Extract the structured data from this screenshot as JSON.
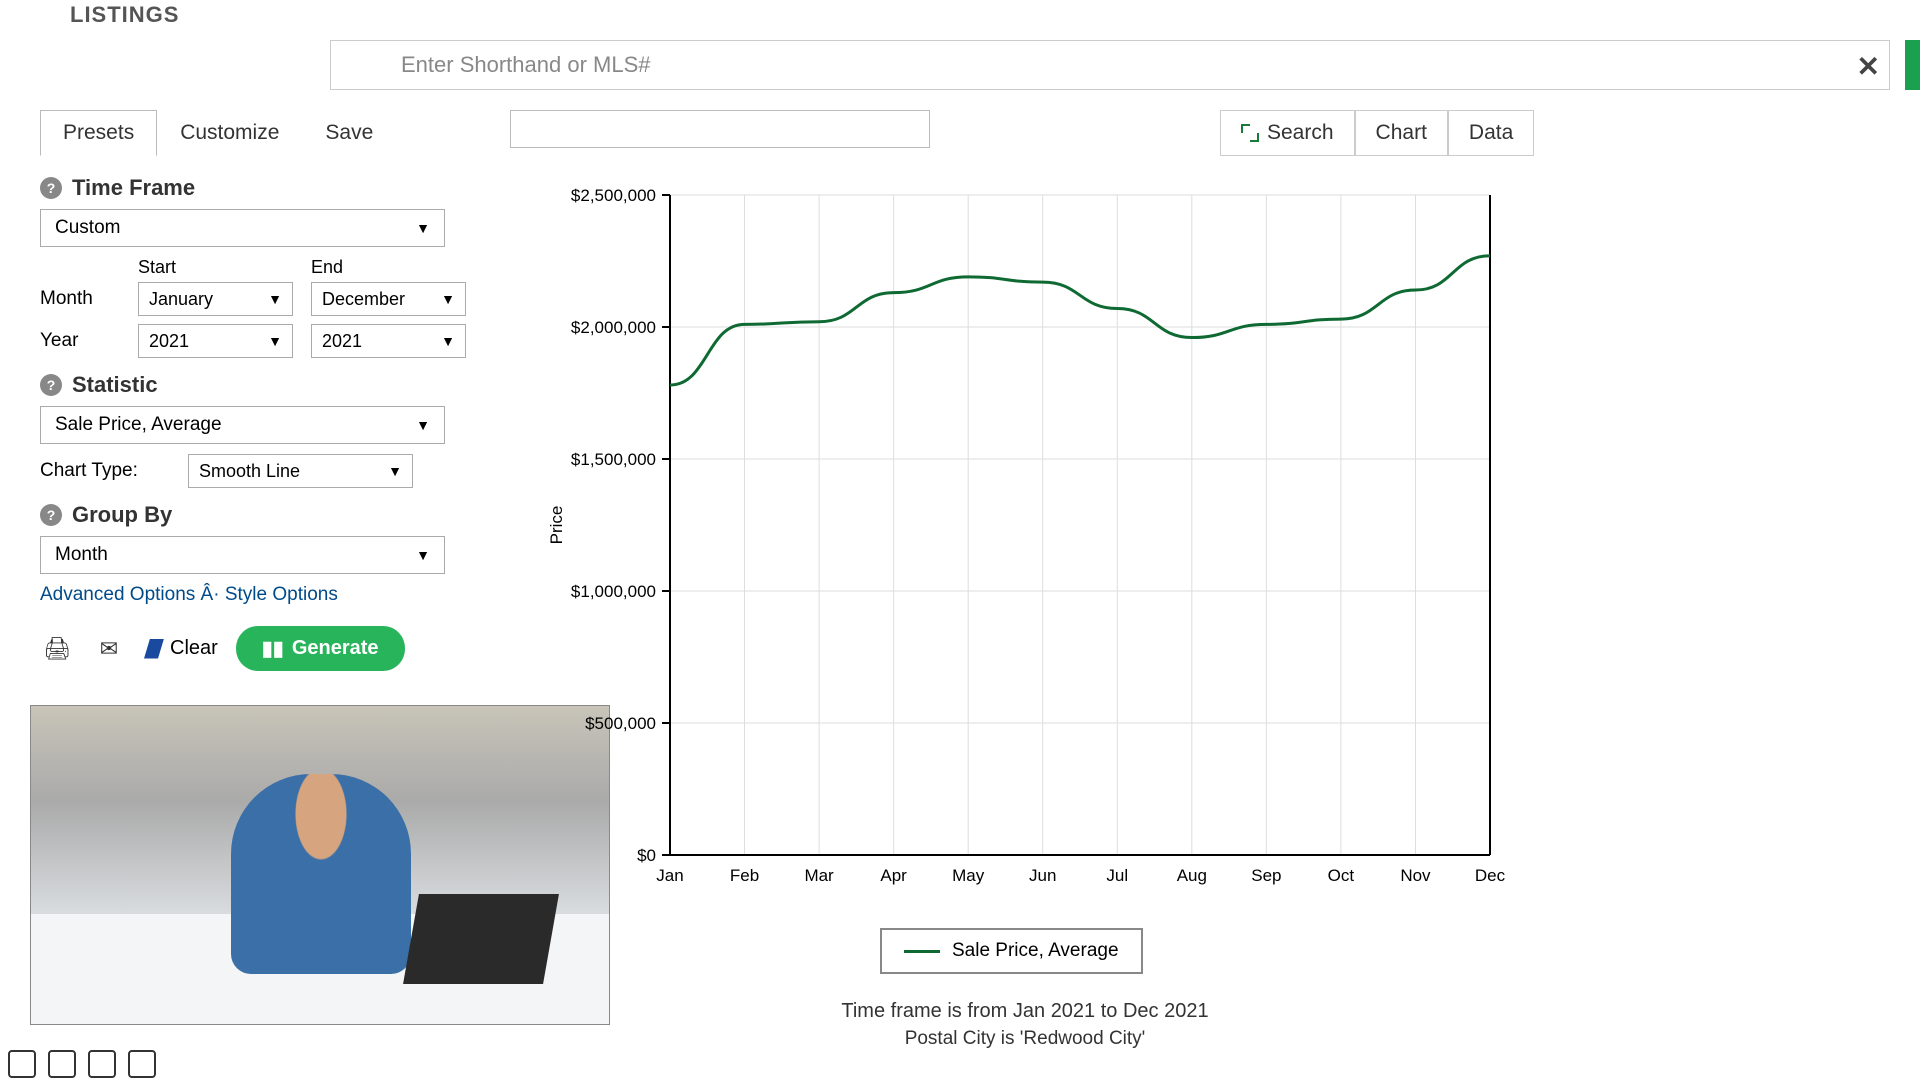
{
  "header": {
    "logo": "LISTINGS",
    "search_placeholder": "Enter Shorthand or MLS#"
  },
  "tabs": {
    "presets": "Presets",
    "customize": "Customize",
    "save": "Save"
  },
  "right_tabs": {
    "search": "Search",
    "chart": "Chart",
    "data": "Data"
  },
  "timeframe": {
    "title": "Time Frame",
    "range_type": "Custom",
    "start_label": "Start",
    "end_label": "End",
    "month_label": "Month",
    "year_label": "Year",
    "start_month": "January",
    "end_month": "December",
    "start_year": "2021",
    "end_year": "2021"
  },
  "statistic": {
    "title": "Statistic",
    "value": "Sale Price, Average",
    "chart_type_label": "Chart Type:",
    "chart_type_value": "Smooth Line"
  },
  "groupby": {
    "title": "Group By",
    "value": "Month"
  },
  "links": {
    "advanced": "Advanced Options",
    "sep": " Â· ",
    "style": "Style Options"
  },
  "actions": {
    "clear": "Clear",
    "generate": "Generate"
  },
  "chart": {
    "type": "line",
    "y_title": "Price",
    "y_ticks": [
      "$0",
      "$500,000",
      "$1,000,000",
      "$1,500,000",
      "$2,500,000",
      "$2,000,000"
    ],
    "y_tick_values": [
      0,
      500000,
      1000000,
      1500000,
      2500000,
      2000000
    ],
    "x_labels": [
      "Jan",
      "Feb",
      "Mar",
      "Apr",
      "May",
      "Jun",
      "Jul",
      "Aug",
      "Sep",
      "Oct",
      "Nov",
      "Dec"
    ],
    "series": {
      "name": "Sale Price, Average",
      "color": "#0e6a32",
      "values": [
        1780000,
        2010000,
        2020000,
        2130000,
        2190000,
        2170000,
        2070000,
        1960000,
        2010000,
        2030000,
        2140000,
        2270000
      ]
    },
    "ylim": [
      0,
      2500000
    ],
    "background": "#ffffff",
    "grid_color": "#dddddd",
    "axis_color": "#000000",
    "line_width": 3,
    "caption1": "Time frame is from Jan 2021 to Dec 2021",
    "caption2": "Postal City is 'Redwood City'"
  },
  "legend": {
    "label": "Sale Price, Average"
  }
}
